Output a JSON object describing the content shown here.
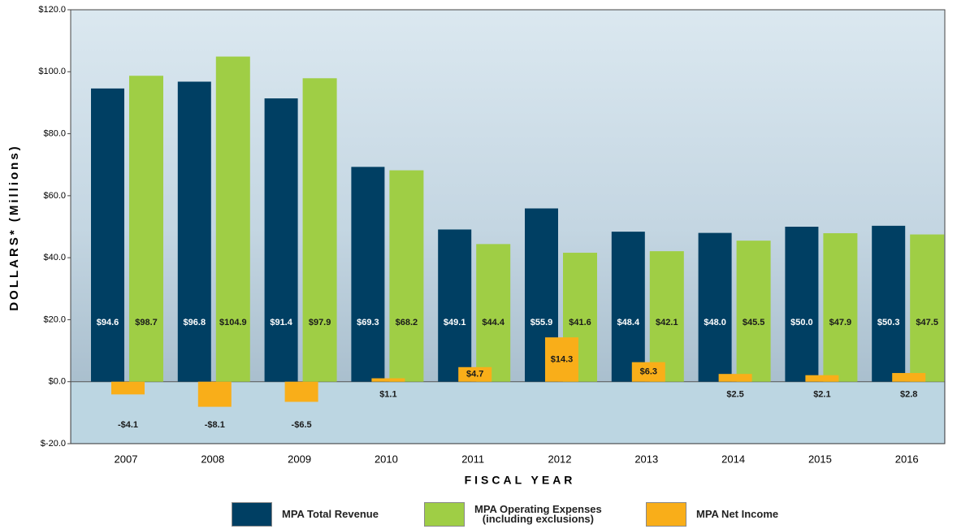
{
  "chart_data": {
    "type": "bar",
    "y_label": "DOLLARS* (Millions)",
    "x_label": "FISCAL YEAR",
    "categories": [
      "2007",
      "2008",
      "2009",
      "2010",
      "2011",
      "2012",
      "2013",
      "2014",
      "2015",
      "2016"
    ],
    "series": [
      {
        "name": "MPA Total Revenue",
        "color": "#003f63",
        "values": [
          94.6,
          96.8,
          91.4,
          69.3,
          49.1,
          55.9,
          48.4,
          48.0,
          50.0,
          50.3
        ],
        "value_labels": [
          "$94.6",
          "$96.8",
          "$91.4",
          "$69.3",
          "$49.1",
          "$55.9",
          "$48.4",
          "$48.0",
          "$50.0",
          "$50.3"
        ]
      },
      {
        "name": "MPA Operating Expenses\n(including exclusions)",
        "color": "#9fce45",
        "values": [
          98.7,
          104.9,
          97.9,
          68.2,
          44.4,
          41.6,
          42.1,
          45.5,
          47.9,
          47.5
        ],
        "value_labels": [
          "$98.7",
          "$104.9",
          "$97.9",
          "$68.2",
          "$44.4",
          "$41.6",
          "$42.1",
          "$45.5",
          "$47.9",
          "$47.5"
        ]
      },
      {
        "name": "MPA Net Income",
        "color": "#f9ae19",
        "values": [
          -4.1,
          -8.1,
          -6.5,
          1.1,
          4.7,
          14.3,
          6.3,
          2.5,
          2.1,
          2.8
        ],
        "value_labels": [
          "-$4.1",
          "-$8.1",
          "-$6.5",
          "$1.1",
          "$4.7",
          "$14.3",
          "$6.3",
          "$2.5",
          "$2.1",
          "$2.8"
        ]
      }
    ],
    "ylim": [
      -20,
      120
    ],
    "yticks": [
      {
        "value": -20,
        "label": "$-20.0"
      },
      {
        "value": 0,
        "label": "$0.0"
      },
      {
        "value": 20,
        "label": "$20.0"
      },
      {
        "value": 40,
        "label": "$40.0"
      },
      {
        "value": 60,
        "label": "$60.0"
      },
      {
        "value": 80,
        "label": "$80.0"
      },
      {
        "value": 100,
        "label": "$100.0"
      },
      {
        "value": 120,
        "label": "$120.0"
      }
    ]
  }
}
